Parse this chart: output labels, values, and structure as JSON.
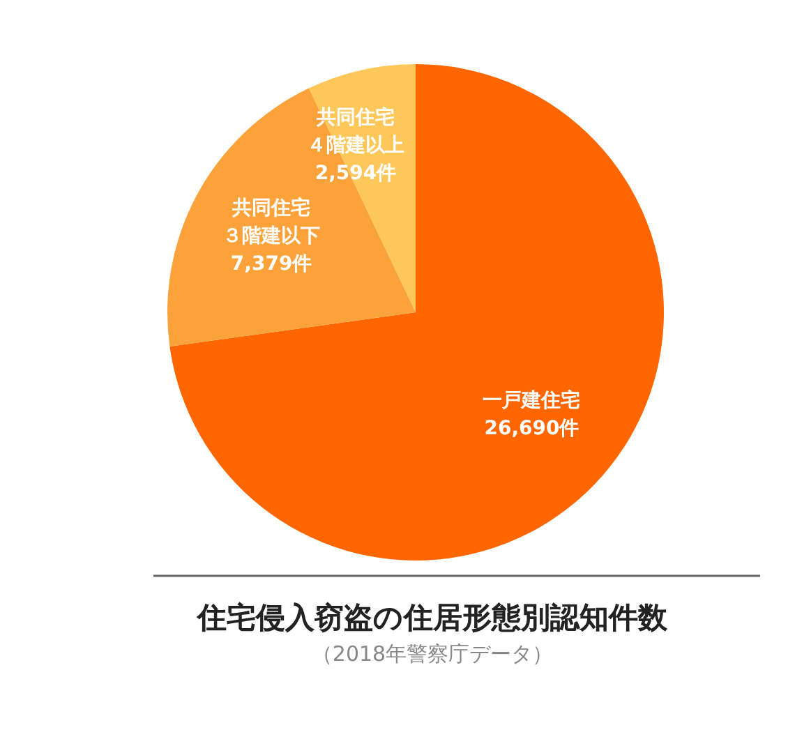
{
  "chart_data": {
    "type": "pie",
    "title": "住宅侵入窃盗の住居形態別認知件数",
    "annotations": [
      "（2018年警察庁データ）"
    ],
    "categories": [
      "一戸建住宅",
      "共同住宅４階建以上",
      "共同住宅３階建以下"
    ],
    "values": [
      26690,
      2594,
      7379
    ],
    "value_labels": [
      "26,690件",
      "2,594件",
      "7,379件"
    ],
    "colors": [
      "#ff6600",
      "#fdc75a",
      "#fba23a"
    ],
    "legend": false
  }
}
